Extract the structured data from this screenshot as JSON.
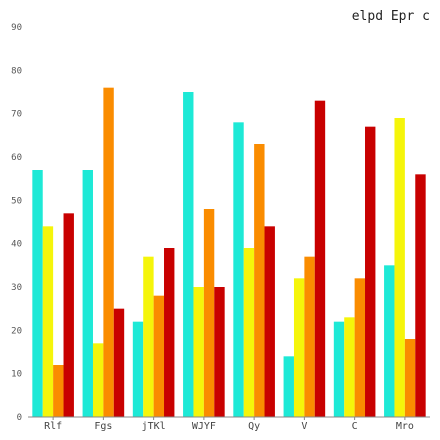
{
  "chart_data": {
    "type": "bar",
    "title": "elpd Epr c",
    "xlabel": "",
    "ylabel": "",
    "ylim": [
      0,
      90
    ],
    "yticks": [
      0,
      10,
      20,
      30,
      40,
      50,
      60,
      70,
      80,
      90
    ],
    "grid": false,
    "legend": "none",
    "categories": [
      "Rlf",
      "Fgs",
      "jTKl",
      "WJYF",
      "Qy",
      "V",
      "C",
      "Mro"
    ],
    "series": [
      {
        "color": "#1de9d6",
        "values": [
          57,
          57,
          22,
          75,
          68,
          14,
          22,
          35
        ]
      },
      {
        "color": "#f5f50a",
        "values": [
          44,
          17,
          37,
          30,
          39,
          32,
          23,
          69
        ]
      },
      {
        "color": "#fa8c00",
        "values": [
          12,
          76,
          28,
          48,
          63,
          37,
          32,
          18
        ]
      },
      {
        "color": "#c80000",
        "values": [
          47,
          25,
          39,
          30,
          44,
          73,
          67,
          56
        ]
      }
    ]
  }
}
